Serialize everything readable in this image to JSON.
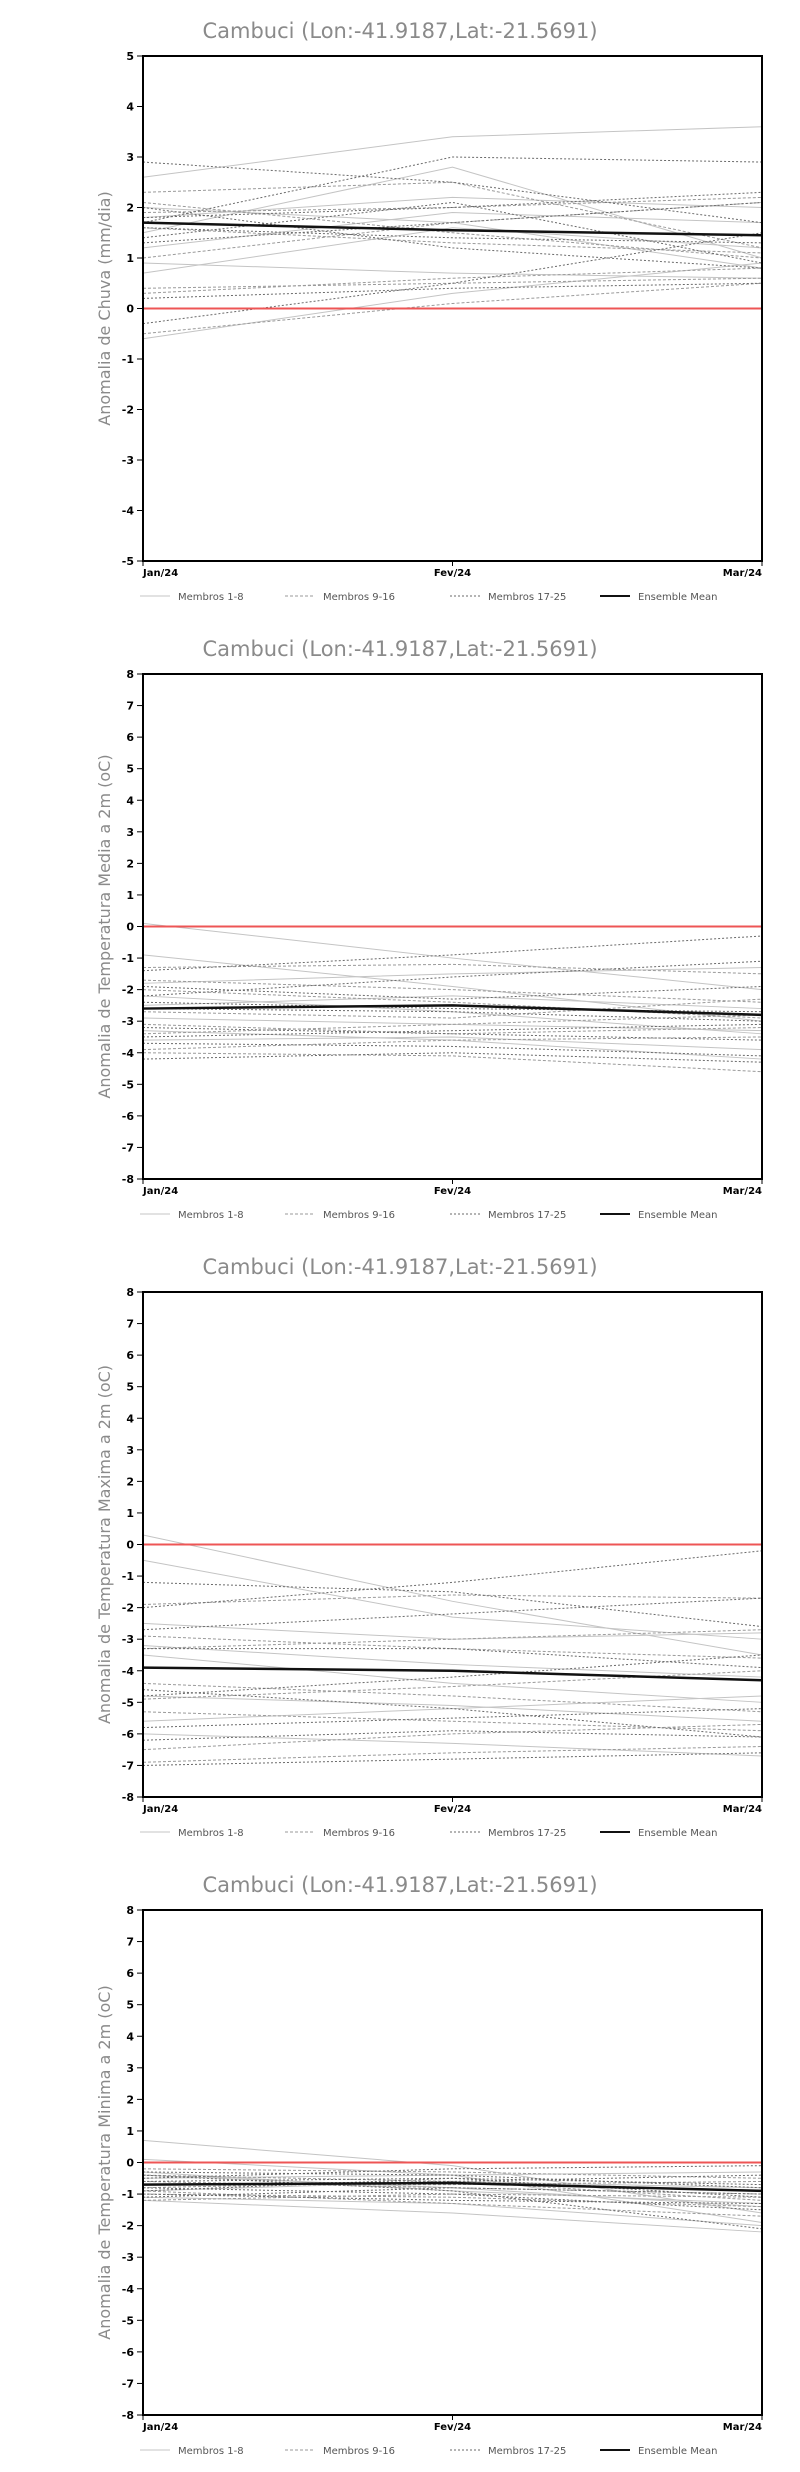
{
  "colors": {
    "members_1_8": "#c4c4c4",
    "members_9_16": "#9a9a9a",
    "members_17_25": "#6a6a6a",
    "ensemble_mean": "#111111",
    "zero_line": "#ee5555",
    "frame": "#000000"
  },
  "legend": {
    "members_1_8": "Membros 1-8",
    "members_9_16": "Membros 9-16",
    "members_17_25": "Membros 17-25",
    "ensemble_mean": "Ensemble Mean"
  },
  "chart_data": [
    {
      "type": "line",
      "title": "Cambuci (Lon:-41.9187,Lat:-21.5691)",
      "xlabel": "",
      "ylabel": "Anomalia de Chuva (mm/dia)",
      "categories": [
        "Jan/24",
        "Fev/24",
        "Mar/24"
      ],
      "ylim": [
        -5,
        5
      ],
      "yticks": [
        -5,
        -4,
        -3,
        -2,
        -1,
        0,
        1,
        2,
        3,
        4,
        5
      ],
      "grid": false,
      "legend_position": "bottom",
      "ensemble_mean": [
        1.7,
        1.55,
        1.45
      ],
      "members_1_8": [
        [
          2.6,
          3.4,
          3.6
        ],
        [
          1.5,
          2.8,
          1.0
        ],
        [
          0.7,
          1.6,
          1.2
        ],
        [
          2.0,
          1.7,
          0.8
        ],
        [
          0.9,
          0.7,
          0.6
        ],
        [
          1.8,
          2.2,
          2.0
        ],
        [
          -0.6,
          0.3,
          0.9
        ],
        [
          1.2,
          1.9,
          1.7
        ]
      ],
      "members_9_16": [
        [
          2.3,
          2.5,
          1.2
        ],
        [
          1.6,
          1.3,
          1.1
        ],
        [
          0.4,
          0.5,
          0.6
        ],
        [
          1.9,
          2.0,
          2.2
        ],
        [
          2.1,
          1.5,
          1.0
        ],
        [
          -0.5,
          0.1,
          0.5
        ],
        [
          1.0,
          1.7,
          2.1
        ],
        [
          0.3,
          0.6,
          0.8
        ]
      ],
      "members_17_25": [
        [
          2.9,
          2.5,
          1.7
        ],
        [
          1.8,
          2.0,
          2.3
        ],
        [
          1.4,
          2.1,
          0.9
        ],
        [
          0.2,
          0.4,
          0.5
        ],
        [
          -0.3,
          0.5,
          1.5
        ],
        [
          1.6,
          1.4,
          1.3
        ],
        [
          2.0,
          1.2,
          0.8
        ],
        [
          1.3,
          1.7,
          2.1
        ],
        [
          1.7,
          3.0,
          2.9
        ]
      ]
    },
    {
      "type": "line",
      "title": "Cambuci (Lon:-41.9187,Lat:-21.5691)",
      "xlabel": "",
      "ylabel": "Anomalia de Temperatura Media a 2m (oC)",
      "categories": [
        "Jan/24",
        "Fev/24",
        "Mar/24"
      ],
      "ylim": [
        -8,
        8
      ],
      "yticks": [
        -8,
        -7,
        -6,
        -5,
        -4,
        -3,
        -2,
        -1,
        0,
        1,
        2,
        3,
        4,
        5,
        6,
        7,
        8
      ],
      "grid": false,
      "legend_position": "bottom",
      "ensemble_mean": [
        -2.6,
        -2.5,
        -2.8
      ],
      "members_1_8": [
        [
          0.1,
          -1.0,
          -2.0
        ],
        [
          -0.9,
          -1.9,
          -3.0
        ],
        [
          -2.9,
          -3.1,
          -3.3
        ],
        [
          -3.6,
          -3.5,
          -3.9
        ],
        [
          -1.8,
          -1.5,
          -1.3
        ],
        [
          -2.2,
          -2.7,
          -3.4
        ],
        [
          -3.3,
          -3.6,
          -4.2
        ],
        [
          -2.5,
          -2.2,
          -2.6
        ]
      ],
      "members_9_16": [
        [
          -1.3,
          -1.2,
          -1.5
        ],
        [
          -2.0,
          -2.4,
          -2.9
        ],
        [
          -3.1,
          -3.4,
          -3.2
        ],
        [
          -3.9,
          -3.6,
          -3.5
        ],
        [
          -2.7,
          -2.9,
          -2.3
        ],
        [
          -1.7,
          -2.0,
          -2.4
        ],
        [
          -3.4,
          -3.1,
          -2.8
        ],
        [
          -4.0,
          -4.1,
          -4.6
        ]
      ],
      "members_17_25": [
        [
          -1.4,
          -0.9,
          -0.3
        ],
        [
          -2.2,
          -1.6,
          -1.1
        ],
        [
          -2.4,
          -2.6,
          -2.7
        ],
        [
          -3.2,
          -3.4,
          -3.6
        ],
        [
          -3.5,
          -3.3,
          -3.1
        ],
        [
          -4.2,
          -4.0,
          -4.3
        ],
        [
          -1.9,
          -2.3,
          -1.9
        ],
        [
          -3.7,
          -3.8,
          -4.1
        ],
        [
          -2.6,
          -2.7,
          -3.0
        ]
      ]
    },
    {
      "type": "line",
      "title": "Cambuci (Lon:-41.9187,Lat:-21.5691)",
      "xlabel": "",
      "ylabel": "Anomalia de Temperatura Maxima a 2m (oC)",
      "categories": [
        "Jan/24",
        "Fev/24",
        "Mar/24"
      ],
      "ylim": [
        -8,
        8
      ],
      "yticks": [
        -8,
        -7,
        -6,
        -5,
        -4,
        -3,
        -2,
        -1,
        0,
        1,
        2,
        3,
        4,
        5,
        6,
        7,
        8
      ],
      "grid": false,
      "legend_position": "bottom",
      "ensemble_mean": [
        -3.9,
        -4.0,
        -4.3
      ],
      "members_1_8": [
        [
          0.3,
          -1.8,
          -3.5
        ],
        [
          -0.5,
          -2.3,
          -3.0
        ],
        [
          -3.2,
          -3.8,
          -4.2
        ],
        [
          -4.8,
          -5.1,
          -5.6
        ],
        [
          -2.5,
          -3.0,
          -2.8
        ],
        [
          -5.6,
          -5.2,
          -4.8
        ],
        [
          -6.0,
          -6.3,
          -6.7
        ],
        [
          -3.5,
          -4.4,
          -5.0
        ]
      ],
      "members_9_16": [
        [
          -1.9,
          -1.6,
          -1.7
        ],
        [
          -2.9,
          -3.3,
          -3.6
        ],
        [
          -4.4,
          -4.8,
          -5.3
        ],
        [
          -5.3,
          -5.6,
          -5.9
        ],
        [
          -6.5,
          -6.0,
          -5.7
        ],
        [
          -3.3,
          -3.0,
          -2.7
        ],
        [
          -6.9,
          -6.6,
          -6.4
        ],
        [
          -4.9,
          -4.5,
          -4.0
        ]
      ],
      "members_17_25": [
        [
          -2.0,
          -1.2,
          -0.2
        ],
        [
          -1.2,
          -1.5,
          -2.6
        ],
        [
          -2.7,
          -2.2,
          -1.7
        ],
        [
          -3.3,
          -3.3,
          -3.9
        ],
        [
          -4.6,
          -5.2,
          -6.1
        ],
        [
          -5.8,
          -5.5,
          -5.2
        ],
        [
          -6.2,
          -5.9,
          -6.1
        ],
        [
          -7.0,
          -6.8,
          -6.6
        ],
        [
          -4.8,
          -4.2,
          -3.5
        ]
      ]
    },
    {
      "type": "line",
      "title": "Cambuci (Lon:-41.9187,Lat:-21.5691)",
      "xlabel": "",
      "ylabel": "Anomalia de Temperatura Minima a 2m (oC)",
      "categories": [
        "Jan/24",
        "Fev/24",
        "Mar/24"
      ],
      "ylim": [
        -8,
        8
      ],
      "yticks": [
        -8,
        -7,
        -6,
        -5,
        -4,
        -3,
        -2,
        -1,
        0,
        1,
        2,
        3,
        4,
        5,
        6,
        7,
        8
      ],
      "grid": false,
      "legend_position": "bottom",
      "ensemble_mean": [
        -0.7,
        -0.65,
        -0.9
      ],
      "members_1_8": [
        [
          0.7,
          -0.1,
          -1.6
        ],
        [
          0.1,
          -0.4,
          -1.9
        ],
        [
          -0.3,
          -0.9,
          -1.3
        ],
        [
          -1.1,
          -1.3,
          -2.0
        ],
        [
          -0.9,
          -0.6,
          -0.8
        ],
        [
          -0.5,
          -0.4,
          -0.3
        ],
        [
          -1.2,
          -1.6,
          -2.2
        ],
        [
          -0.4,
          -0.8,
          -1.4
        ]
      ],
      "members_9_16": [
        [
          -0.6,
          -0.8,
          -1.0
        ],
        [
          -1.0,
          -1.1,
          -1.4
        ],
        [
          -0.2,
          -0.3,
          -0.5
        ],
        [
          -0.8,
          -0.6,
          -1.2
        ],
        [
          -1.2,
          -1.0,
          -1.1
        ],
        [
          -0.4,
          -0.6,
          -0.9
        ],
        [
          -0.9,
          -1.3,
          -1.7
        ],
        [
          -0.7,
          -0.7,
          -0.6
        ]
      ],
      "members_17_25": [
        [
          -0.5,
          -0.2,
          -0.1
        ],
        [
          -0.9,
          -0.5,
          -0.7
        ],
        [
          -1.0,
          -1.2,
          -1.3
        ],
        [
          -0.3,
          -0.4,
          -0.8
        ],
        [
          -1.1,
          -0.8,
          -1.0
        ],
        [
          -0.6,
          -0.5,
          -1.1
        ],
        [
          -0.8,
          -1.0,
          -1.5
        ],
        [
          -0.7,
          -0.6,
          -0.4
        ],
        [
          -0.4,
          -0.9,
          -2.1
        ]
      ]
    }
  ]
}
